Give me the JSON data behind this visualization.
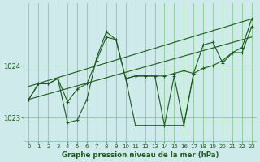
{
  "bg_color": "#ceeaea",
  "grid_color": "#88cc88",
  "line_color": "#1a5c1a",
  "xlabel": "Graphe pression niveau de la mer (hPa)",
  "ylim": [
    1022.55,
    1025.2
  ],
  "xlim": [
    -0.5,
    23.5
  ],
  "yticks": [
    1023,
    1024
  ],
  "xticks": [
    0,
    1,
    2,
    3,
    4,
    5,
    6,
    7,
    8,
    9,
    10,
    11,
    12,
    13,
    14,
    15,
    16,
    17,
    18,
    19,
    20,
    21,
    22,
    23
  ],
  "trend1_x": [
    0,
    23
  ],
  "trend1_y": [
    1023.35,
    1024.55
  ],
  "trend2_x": [
    0,
    23
  ],
  "trend2_y": [
    1023.6,
    1024.9
  ],
  "main_x": [
    0,
    1,
    2,
    3,
    4,
    5,
    6,
    7,
    8,
    9,
    10,
    11,
    12,
    13,
    14,
    15,
    16,
    17,
    18,
    19,
    20,
    21,
    22,
    23
  ],
  "main_y": [
    1023.35,
    1023.65,
    1023.65,
    1023.75,
    1023.3,
    1023.55,
    1023.65,
    1024.1,
    1024.55,
    1024.5,
    1023.75,
    1023.8,
    1023.8,
    1023.8,
    1023.8,
    1023.85,
    1023.9,
    1023.85,
    1023.95,
    1024.0,
    1024.1,
    1024.25,
    1024.25,
    1024.75
  ],
  "spike_x": [
    0,
    1,
    2,
    3,
    4,
    5,
    6,
    7,
    8,
    9,
    10,
    11,
    12,
    13,
    14,
    15,
    16,
    17,
    18,
    19,
    20,
    21,
    22,
    23
  ],
  "spike_y": [
    1023.35,
    1023.65,
    1023.65,
    1023.75,
    1022.9,
    1022.95,
    1023.35,
    1024.15,
    1024.65,
    1024.5,
    1023.75,
    1023.8,
    1023.8,
    1023.8,
    1022.85,
    1023.8,
    1022.85,
    1023.85,
    1024.4,
    1024.45,
    1024.05,
    1024.25,
    1024.35,
    1024.9
  ],
  "spike2_x": [
    10,
    11,
    12,
    13,
    14,
    15,
    16,
    17
  ],
  "spike2_y": [
    1023.75,
    1022.85,
    1022.85,
    1022.85,
    1022.85,
    1022.85,
    1022.85,
    1023.85
  ]
}
